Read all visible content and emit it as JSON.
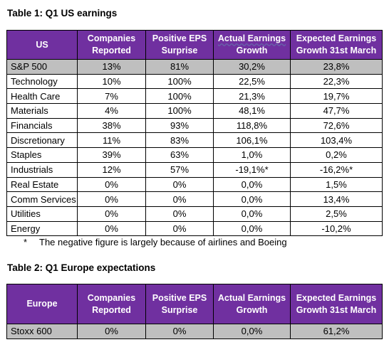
{
  "table1": {
    "title": "Table 1: Q1 US earnings",
    "headers": {
      "region": "US",
      "companies_line1": "Companies",
      "companies_line2": "Reported",
      "eps_line1": "Positive EPS",
      "eps_line2": "Surprise",
      "actual_line1": "Actual Earnings",
      "actual_line2": "Growth",
      "expected_line1": "Expected Earnings",
      "expected_line2": "Growth 31st March"
    },
    "rows": [
      {
        "sector": "S&P 500",
        "companies": "13%",
        "eps": "81%",
        "actual": "30,2%",
        "expected": "23,8%"
      },
      {
        "sector": "Technology",
        "companies": "10%",
        "eps": "100%",
        "actual": "22,5%",
        "expected": "22,3%"
      },
      {
        "sector": "Health Care",
        "companies": "7%",
        "eps": "100%",
        "actual": "21,3%",
        "expected": "19,7%"
      },
      {
        "sector": "Materials",
        "companies": "4%",
        "eps": "100%",
        "actual": "48,1%",
        "expected": "47,7%"
      },
      {
        "sector": "Financials",
        "companies": "38%",
        "eps": "93%",
        "actual": "118,8%",
        "expected": "72,6%"
      },
      {
        "sector": "Discretionary",
        "companies": "11%",
        "eps": "83%",
        "actual": "106,1%",
        "expected": "103,4%"
      },
      {
        "sector": "Staples",
        "companies": "39%",
        "eps": "63%",
        "actual": "1,0%",
        "expected": "0,2%"
      },
      {
        "sector": "Industrials",
        "companies": "12%",
        "eps": "57%",
        "actual": "-19,1%*",
        "expected": "-16,2%*"
      },
      {
        "sector": "Real Estate",
        "companies": "0%",
        "eps": "0%",
        "actual": "0,0%",
        "expected": "1,5%"
      },
      {
        "sector": "Comm Services",
        "companies": "0%",
        "eps": "0%",
        "actual": "0,0%",
        "expected": "13,4%"
      },
      {
        "sector": "Utilities",
        "companies": "0%",
        "eps": "0%",
        "actual": "0,0%",
        "expected": "2,5%"
      },
      {
        "sector": "Energy",
        "companies": "0%",
        "eps": "0%",
        "actual": "0,0%",
        "expected": "-10,2%"
      }
    ],
    "footnote": {
      "marker": "*",
      "text": "The negative figure is largely because of airlines and Boeing"
    }
  },
  "table2": {
    "title": "Table 2: Q1 Europe expectations",
    "headers": {
      "region": "Europe",
      "companies_line1": "Companies",
      "companies_line2": "Reported",
      "eps_line1": "Positive EPS",
      "eps_line2": "Surprise",
      "actual_line1": "Actual Earnings",
      "actual_line2": "Growth",
      "expected_line1": "Expected Earnings",
      "expected_line2": "Growth 31st March"
    },
    "rows": [
      {
        "sector": "Stoxx 600",
        "companies": "0%",
        "eps": "0%",
        "actual": "0,0%",
        "expected": "61,2%"
      }
    ]
  },
  "colors": {
    "header_bg": "#7030a0",
    "highlight_row": "#bfbfbf"
  }
}
